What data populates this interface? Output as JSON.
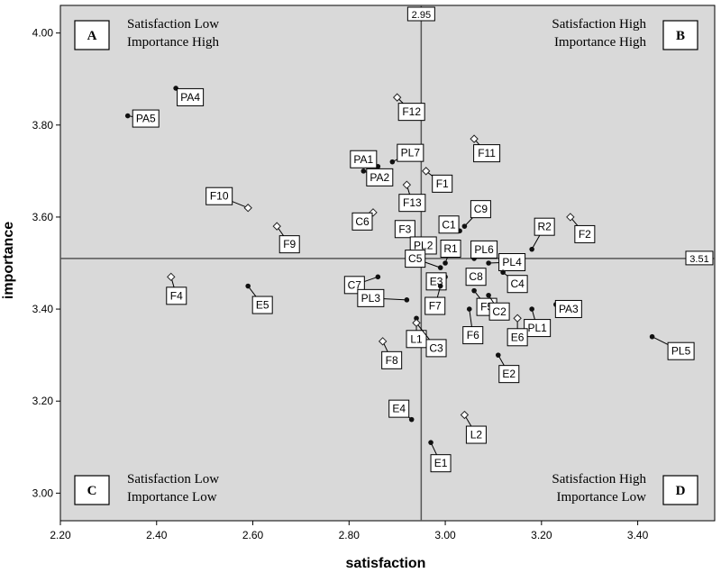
{
  "chart_data": {
    "type": "scatter",
    "title": "",
    "xlabel": "satisfaction",
    "ylabel": "importance",
    "xlim": [
      2.2,
      3.56
    ],
    "ylim": [
      2.94,
      4.06
    ],
    "xticks": [
      "2.20",
      "2.40",
      "2.60",
      "2.80",
      "3.00",
      "3.20",
      "3.40"
    ],
    "yticks": [
      "3.00",
      "3.20",
      "3.40",
      "3.60",
      "3.80",
      "4.00"
    ],
    "reference_lines": {
      "x": 2.95,
      "x_label": "2.95",
      "y": 3.51,
      "y_label": "3.51"
    },
    "quadrants": [
      {
        "letter": "A",
        "line1": "Satisfaction Low",
        "line2": "Importance High"
      },
      {
        "letter": "B",
        "line1": "Satisfaction High",
        "line2": "Importance High"
      },
      {
        "letter": "C",
        "line1": "Satisfaction Low",
        "line2": "Importance Low"
      },
      {
        "letter": "D",
        "line1": "Satisfaction High",
        "line2": "Importance Low"
      }
    ],
    "points": [
      {
        "label": "PA4",
        "x": 2.44,
        "y": 3.88
      },
      {
        "label": "PA5",
        "x": 2.34,
        "y": 3.82
      },
      {
        "label": "F12",
        "x": 2.9,
        "y": 3.86
      },
      {
        "label": "F11",
        "x": 3.06,
        "y": 3.77
      },
      {
        "label": "PA1",
        "x": 2.86,
        "y": 3.71
      },
      {
        "label": "PL7",
        "x": 2.89,
        "y": 3.72
      },
      {
        "label": "F1",
        "x": 2.96,
        "y": 3.7
      },
      {
        "label": "PA2",
        "x": 2.83,
        "y": 3.7
      },
      {
        "label": "F13",
        "x": 2.92,
        "y": 3.67
      },
      {
        "label": "F10",
        "x": 2.59,
        "y": 3.62
      },
      {
        "label": "C6",
        "x": 2.85,
        "y": 3.61
      },
      {
        "label": "F9",
        "x": 2.65,
        "y": 3.58
      },
      {
        "label": "F3",
        "x": 2.92,
        "y": 3.57
      },
      {
        "label": "C9",
        "x": 3.04,
        "y": 3.58
      },
      {
        "label": "C1",
        "x": 3.03,
        "y": 3.57
      },
      {
        "label": "R2",
        "x": 3.18,
        "y": 3.53
      },
      {
        "label": "F2",
        "x": 3.26,
        "y": 3.6
      },
      {
        "label": "PL2",
        "x": 2.96,
        "y": 3.55
      },
      {
        "label": "PL6",
        "x": 3.06,
        "y": 3.51
      },
      {
        "label": "R1",
        "x": 3.0,
        "y": 3.5
      },
      {
        "label": "PL4",
        "x": 3.09,
        "y": 3.5
      },
      {
        "label": "C7",
        "x": 2.86,
        "y": 3.47
      },
      {
        "label": "C5",
        "x": 2.99,
        "y": 3.49
      },
      {
        "label": "F4",
        "x": 2.43,
        "y": 3.47
      },
      {
        "label": "E5",
        "x": 2.59,
        "y": 3.45
      },
      {
        "label": "C8",
        "x": 3.06,
        "y": 3.48
      },
      {
        "label": "C4",
        "x": 3.12,
        "y": 3.48
      },
      {
        "label": "E3",
        "x": 3.0,
        "y": 3.47
      },
      {
        "label": "F7",
        "x": 2.99,
        "y": 3.45
      },
      {
        "label": "PL3",
        "x": 2.92,
        "y": 3.42
      },
      {
        "label": "F5",
        "x": 3.06,
        "y": 3.44
      },
      {
        "label": "C2",
        "x": 3.09,
        "y": 3.43
      },
      {
        "label": "L1",
        "x": 2.94,
        "y": 3.38
      },
      {
        "label": "PA3",
        "x": 3.23,
        "y": 3.41
      },
      {
        "label": "PL1",
        "x": 3.18,
        "y": 3.4
      },
      {
        "label": "F6",
        "x": 3.05,
        "y": 3.4
      },
      {
        "label": "E6",
        "x": 3.15,
        "y": 3.38
      },
      {
        "label": "C3",
        "x": 2.94,
        "y": 3.37
      },
      {
        "label": "PL5",
        "x": 3.43,
        "y": 3.34
      },
      {
        "label": "F8",
        "x": 2.87,
        "y": 3.33
      },
      {
        "label": "E2",
        "x": 3.11,
        "y": 3.3
      },
      {
        "label": "E4",
        "x": 2.93,
        "y": 3.16
      },
      {
        "label": "L2",
        "x": 3.04,
        "y": 3.17
      },
      {
        "label": "E1",
        "x": 2.97,
        "y": 3.11
      }
    ]
  }
}
